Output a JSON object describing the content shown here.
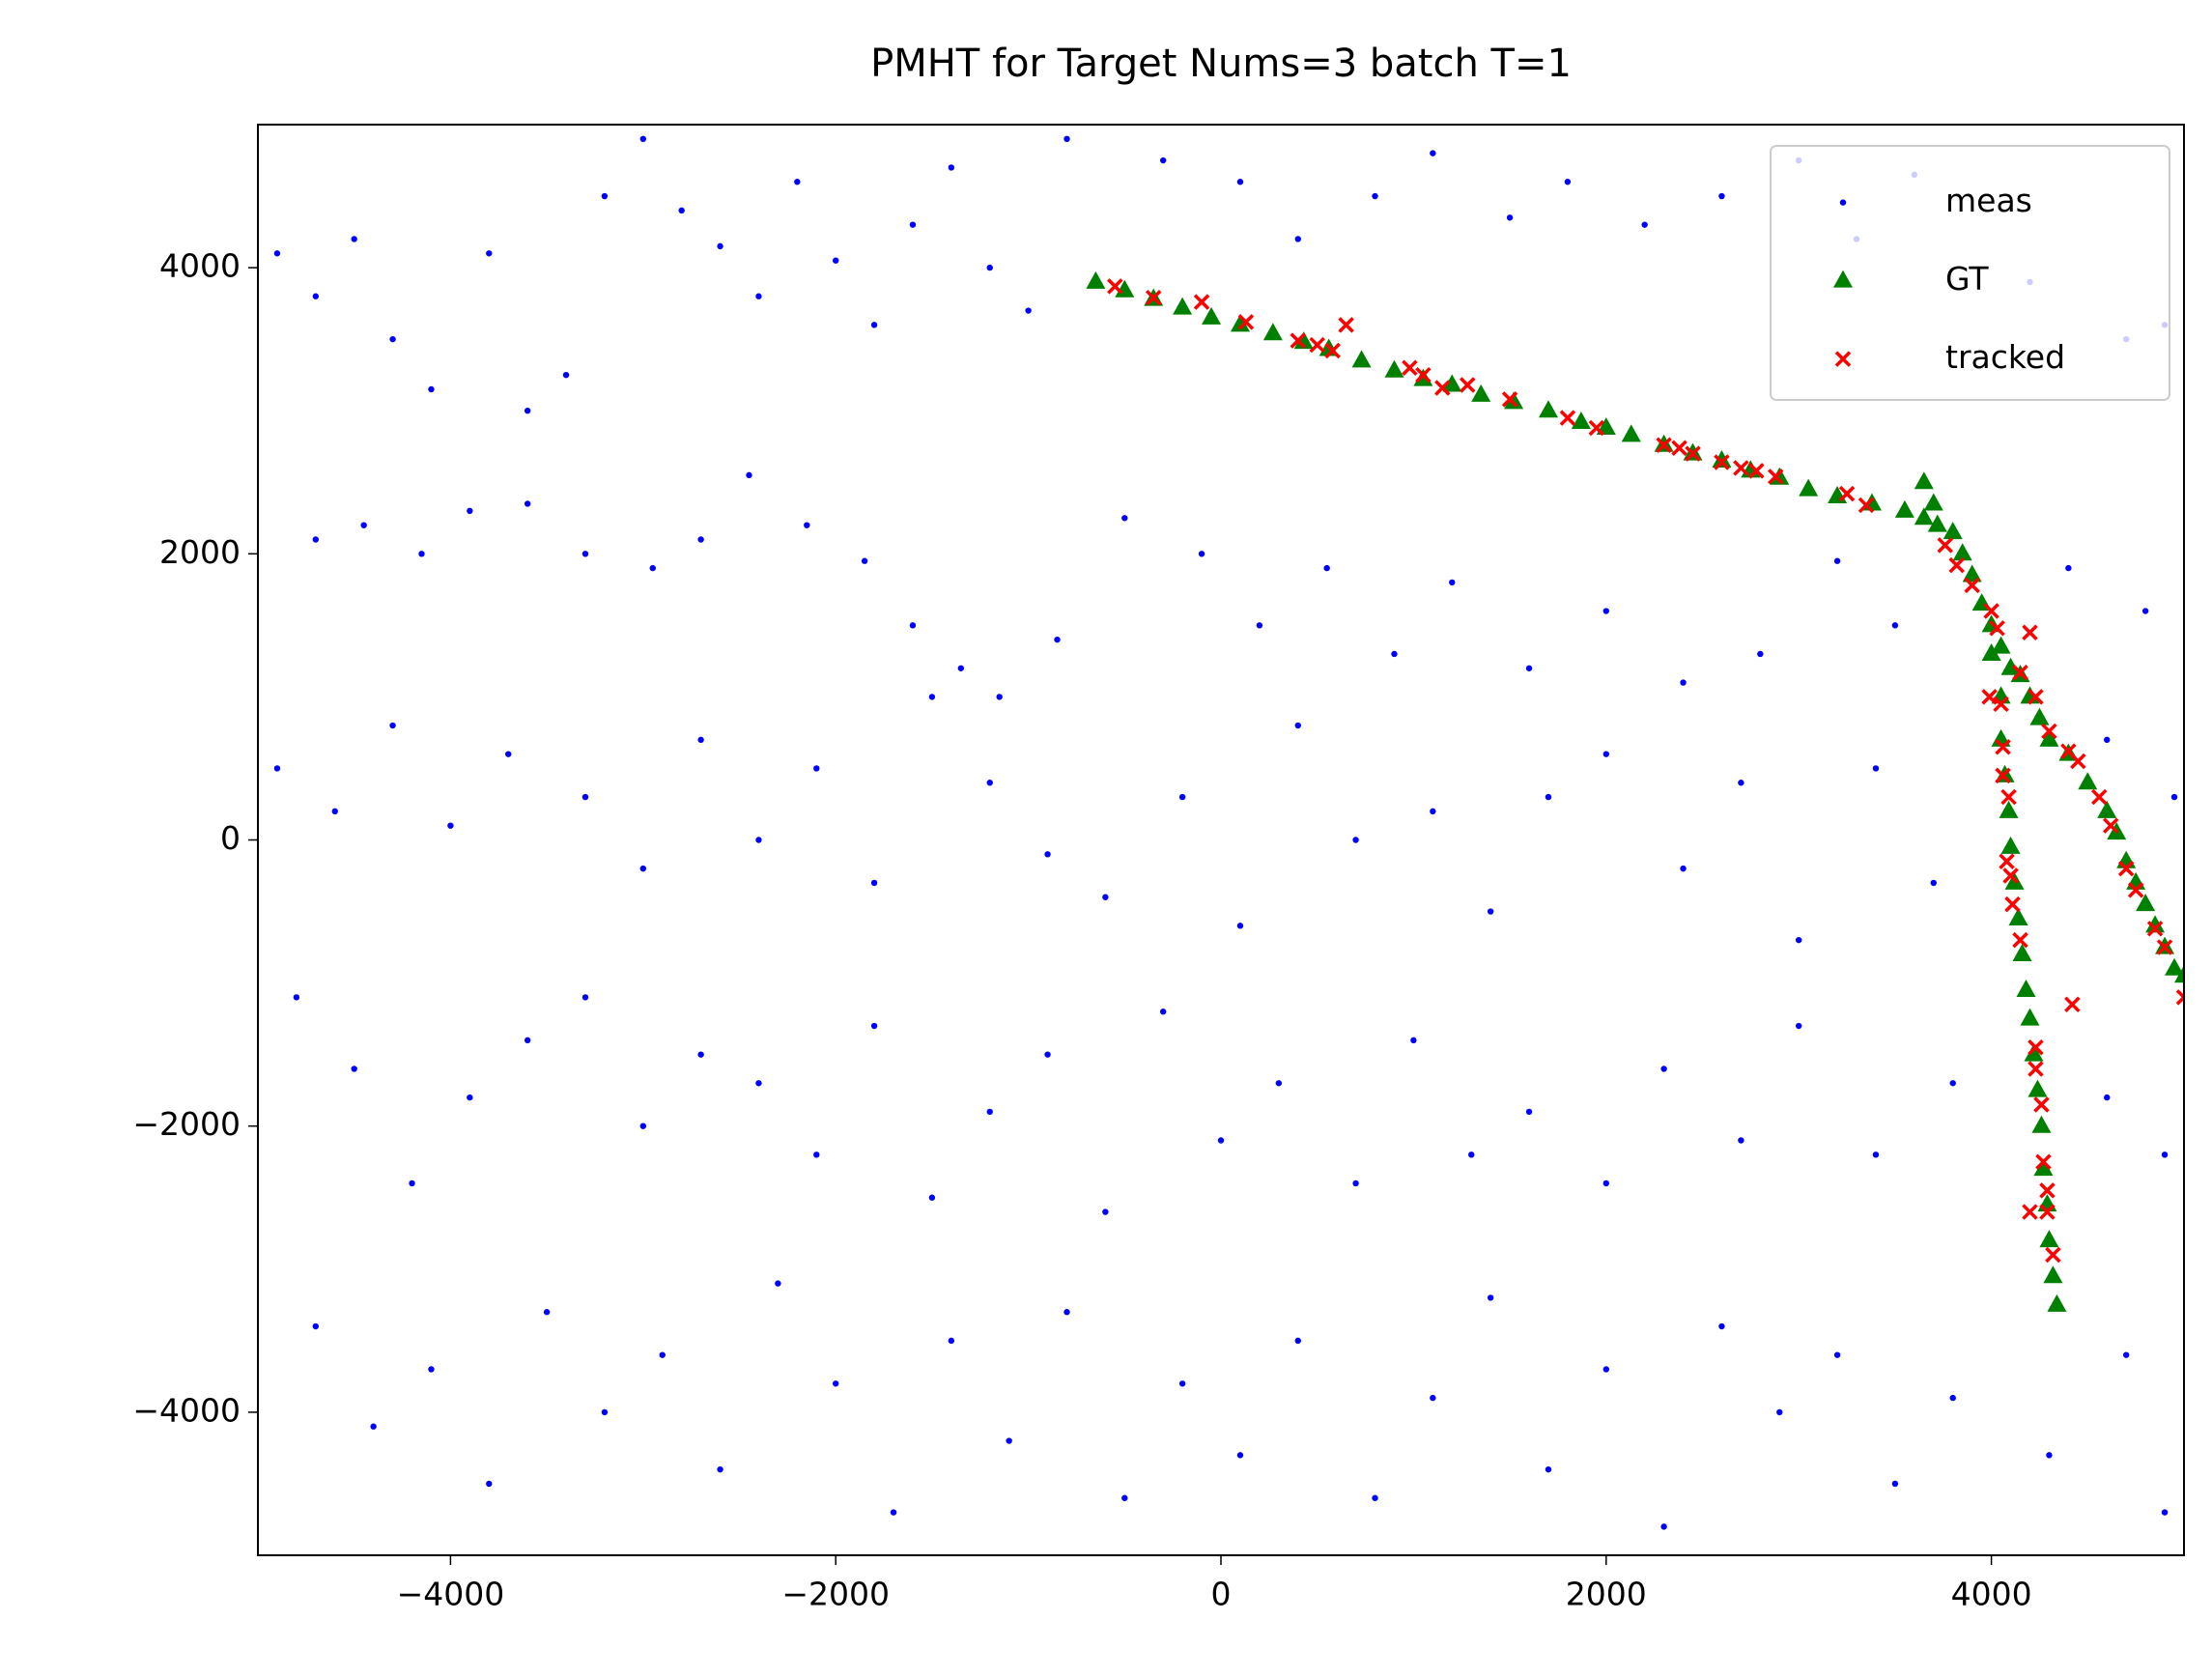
{
  "chart_data": {
    "type": "scatter",
    "title": "PMHT for Target Nums=3 batch T=1",
    "xlim": [
      -5000,
      5000
    ],
    "ylim": [
      -5000,
      5000
    ],
    "xticks": [
      {
        "value": -4000,
        "label": "−4000"
      },
      {
        "value": -2000,
        "label": "−2000"
      },
      0,
      2000,
      4000
    ],
    "yticks": [
      {
        "value": -4000,
        "label": "−4000"
      },
      {
        "value": -2000,
        "label": "−2000"
      },
      0,
      2000,
      4000
    ],
    "grid": false,
    "legend": "upper right",
    "series": [
      {
        "name": "meas",
        "color": "#0000ff",
        "marker": "dot",
        "x": [
          -4900,
          -4700,
          -4500,
          -4300,
          -4100,
          -3800,
          -3600,
          -3400,
          -3200,
          -3000,
          -2800,
          -2600,
          -2400,
          -2200,
          -2000,
          -1800,
          -1600,
          -1400,
          -1200,
          -1000,
          -800,
          -300,
          100,
          400,
          800,
          1100,
          1500,
          1800,
          2200,
          2600,
          3000,
          3300,
          3600,
          4200,
          4700,
          4900,
          -4700,
          -4450,
          -4150,
          -3900,
          -3600,
          -3300,
          -2950,
          -2700,
          -2450,
          -2150,
          -1850,
          -1600,
          -1350,
          -1150,
          -850,
          -500,
          -100,
          200,
          550,
          900,
          1200,
          1600,
          2000,
          2400,
          2800,
          3200,
          3500,
          4400,
          4800,
          -4900,
          -4600,
          -4300,
          -4000,
          -3700,
          -3300,
          -3000,
          -2700,
          -2400,
          -2100,
          -1800,
          -1500,
          -1200,
          -900,
          -600,
          -200,
          100,
          400,
          700,
          1100,
          1400,
          1700,
          2000,
          2400,
          2700,
          3000,
          3400,
          3700,
          4600,
          4950,
          -4800,
          -4500,
          -4200,
          -3900,
          -3600,
          -3300,
          -3000,
          -2700,
          -2400,
          -2100,
          -1800,
          -1500,
          -1200,
          -900,
          -600,
          -300,
          0,
          300,
          700,
          1000,
          1300,
          1600,
          2000,
          2300,
          2700,
          3000,
          3400,
          3800,
          4600,
          4900,
          -4700,
          -4400,
          -4100,
          -3800,
          -3500,
          -3200,
          -2900,
          -2600,
          -2300,
          -2000,
          -1700,
          -1400,
          -1100,
          -800,
          -500,
          -200,
          100,
          400,
          800,
          1100,
          1400,
          1700,
          2000,
          2300,
          2600,
          2900,
          3200,
          3500,
          3800,
          4300,
          4700,
          4900
        ],
        "y": [
          4100,
          3800,
          4200,
          3500,
          3150,
          4100,
          3000,
          3250,
          4500,
          4900,
          4400,
          4150,
          3800,
          4600,
          4050,
          3600,
          4300,
          4700,
          4000,
          3700,
          4900,
          4750,
          4600,
          4200,
          4500,
          4800,
          4350,
          4600,
          4300,
          4500,
          4750,
          4200,
          4650,
          3900,
          3500,
          3600,
          2100,
          2200,
          2000,
          2300,
          2350,
          2000,
          1900,
          2100,
          2550,
          2200,
          1950,
          1500,
          1200,
          1000,
          1400,
          2250,
          2000,
          1500,
          1900,
          1300,
          1800,
          1200,
          1600,
          1100,
          1300,
          1950,
          1500,
          1900,
          1600,
          500,
          200,
          800,
          100,
          600,
          300,
          -200,
          700,
          0,
          500,
          -300,
          1000,
          400,
          -100,
          -400,
          300,
          -600,
          800,
          0,
          200,
          -500,
          300,
          600,
          -200,
          400,
          -700,
          500,
          -300,
          700,
          300,
          -1100,
          -1600,
          -2400,
          -1800,
          -1400,
          -1100,
          -2000,
          -1500,
          -1700,
          -2200,
          -1300,
          -2500,
          -1900,
          -1500,
          -2600,
          -1200,
          -2100,
          -1700,
          -2400,
          -1400,
          -2200,
          -1900,
          -2400,
          -1600,
          -2100,
          -1300,
          -2200,
          -1700,
          -1800,
          -2200,
          -3400,
          -4100,
          -3700,
          -4500,
          -3300,
          -4000,
          -3600,
          -4400,
          -3100,
          -3800,
          -4700,
          -3500,
          -4200,
          -3300,
          -4600,
          -3800,
          -4300,
          -3500,
          -4600,
          -3900,
          -3200,
          -4400,
          -3700,
          -4800,
          -3400,
          -4000,
          -3600,
          -4500,
          -3900,
          -4300,
          -3600,
          -4700
        ]
      },
      {
        "name": "GT",
        "color": "#008000",
        "marker": "triangle",
        "x": [
          -650,
          -500,
          -350,
          -200,
          -50,
          100,
          270,
          430,
          560,
          730,
          900,
          1050,
          1200,
          1350,
          1520,
          1700,
          1870,
          2000,
          2130,
          2300,
          2450,
          2600,
          2750,
          2900,
          3050,
          3200,
          3380,
          3550,
          3650,
          3700,
          3650,
          3720,
          3800,
          3850,
          3900,
          3950,
          4000,
          4050,
          4100,
          4150,
          4200,
          4250,
          4300,
          4400,
          4500,
          4600,
          4650,
          4700,
          4750,
          4800,
          4850,
          4900,
          4950,
          5000,
          4000,
          4050,
          4050,
          4070,
          4090,
          4100,
          4120,
          4140,
          4160,
          4180,
          4200,
          4220,
          4240,
          4260,
          4270,
          4290,
          4300,
          4320,
          4340
        ],
        "y": [
          3900,
          3840,
          3780,
          3720,
          3650,
          3600,
          3540,
          3480,
          3430,
          3350,
          3280,
          3220,
          3180,
          3110,
          3060,
          3000,
          2920,
          2880,
          2830,
          2760,
          2700,
          2650,
          2580,
          2530,
          2450,
          2400,
          2350,
          2300,
          2500,
          2350,
          2250,
          2200,
          2150,
          2000,
          1850,
          1650,
          1500,
          1350,
          1200,
          1150,
          1000,
          850,
          700,
          600,
          400,
          200,
          50,
          -150,
          -300,
          -450,
          -600,
          -750,
          -900,
          -950,
          1300,
          1000,
          700,
          450,
          200,
          -50,
          -300,
          -550,
          -800,
          -1050,
          -1250,
          -1500,
          -1750,
          -2000,
          -2300,
          -2550,
          -2800,
          -3050,
          -3250
        ]
      },
      {
        "name": "tracked",
        "color": "#ff0000",
        "marker": "x",
        "x": [
          -550,
          -350,
          -100,
          130,
          400,
          500,
          580,
          650,
          980,
          1050,
          1150,
          1280,
          1500,
          1800,
          1950,
          2300,
          2380,
          2450,
          2600,
          2700,
          2780,
          2880,
          3250,
          3350,
          3760,
          3820,
          3900,
          4000,
          4030,
          4200,
          4150,
          4230,
          4300,
          4400,
          4450,
          4560,
          4620,
          4700,
          4750,
          4850,
          4900,
          5000,
          3990,
          4050,
          4060,
          4060,
          4090,
          4080,
          4100,
          4110,
          4150,
          4420,
          4230,
          4230,
          4260,
          4270,
          4290,
          4200,
          4290,
          4320
        ],
        "y": [
          3870,
          3790,
          3760,
          3620,
          3490,
          3460,
          3420,
          3600,
          3300,
          3250,
          3160,
          3180,
          3080,
          2950,
          2880,
          2760,
          2740,
          2700,
          2640,
          2600,
          2580,
          2540,
          2420,
          2340,
          2060,
          1920,
          1780,
          1600,
          1480,
          1450,
          1170,
          1000,
          760,
          620,
          550,
          300,
          100,
          -200,
          -350,
          -620,
          -750,
          -1100,
          1000,
          950,
          650,
          450,
          300,
          -150,
          -250,
          -450,
          -700,
          -1150,
          -1450,
          -1600,
          -1850,
          -2250,
          -2450,
          -2600,
          -2600,
          -2900
        ]
      }
    ]
  }
}
